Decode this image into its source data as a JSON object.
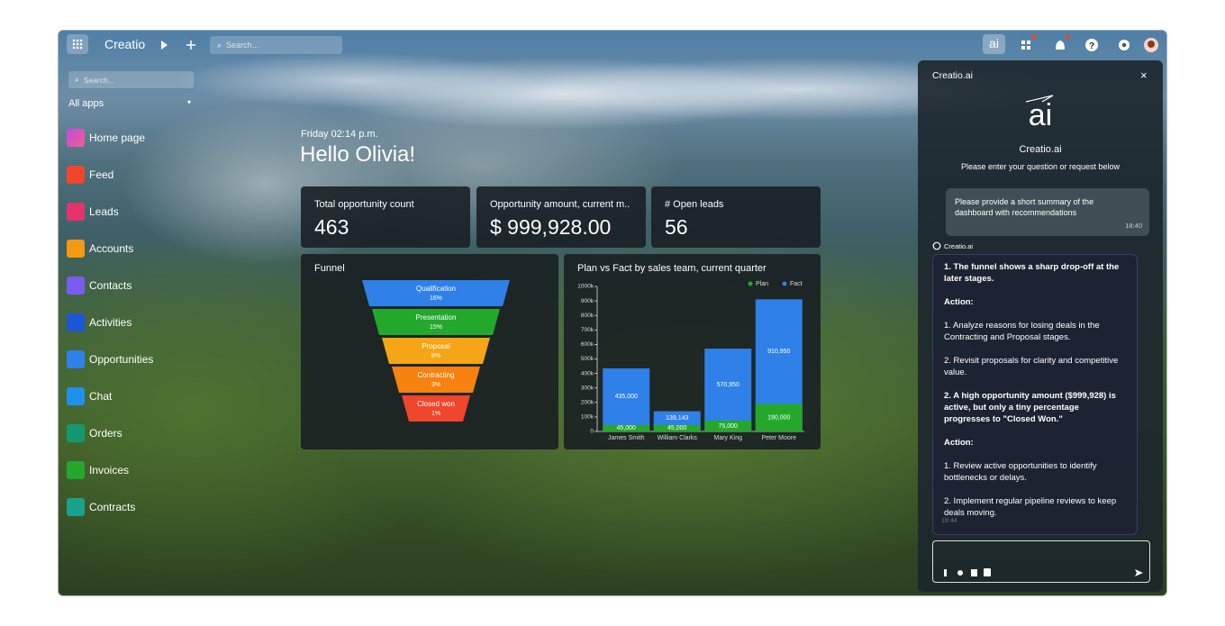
{
  "topbar": {
    "brand": "Creatio",
    "search_placeholder": "Search..."
  },
  "sidebar": {
    "search_placeholder": "Search...",
    "all_apps": "All apps",
    "items": [
      "Home page",
      "Feed",
      "Leads",
      "Accounts",
      "Contacts",
      "Activities",
      "Opportunities",
      "Chat",
      "Orders",
      "Invoices",
      "Contracts"
    ]
  },
  "dashboard": {
    "datetime": "Friday 02:14 p.m.",
    "greeting": "Hello Olivia!",
    "kpis": [
      {
        "label": "Total opportunity count",
        "value": 463
      },
      {
        "label": "Opportunity amount, current m..",
        "value": "$ 999,928.00"
      },
      {
        "label": "# Open leads",
        "value": 56
      }
    ]
  },
  "chart_data": [
    {
      "type": "funnel",
      "title": "Funnel",
      "categories": [
        "Qualification",
        "Presentation",
        "Proposal",
        "Contracting",
        "Closed won"
      ],
      "values": [
        16,
        15,
        8,
        3,
        1
      ],
      "value_labels": [
        "16%",
        "15%",
        "8%",
        "3%",
        "1%"
      ],
      "colors": [
        "#2f80e8",
        "#23a82c",
        "#f5a516",
        "#f7820f",
        "#f0462c"
      ]
    },
    {
      "type": "bar",
      "title": "Plan vs Fact by sales team, current quarter",
      "categories": [
        "James Smith",
        "William Clarks",
        "Mary King",
        "Peter Moore"
      ],
      "series": [
        {
          "name": "Plan",
          "color": "#23a82c",
          "values": [
            45000,
            45000,
            75000,
            190000
          ],
          "value_labels": [
            "45,000",
            "45,000",
            "75,000",
            "190,000"
          ]
        },
        {
          "name": "Fact",
          "color": "#2f80e8",
          "values": [
            435000,
            139143,
            570950,
            910950
          ],
          "value_labels": [
            "435,000",
            "139,143",
            "570,950",
            "910,950"
          ]
        }
      ],
      "ylim": [
        0,
        1000000
      ],
      "yticks": [
        0,
        {
          "value": 100000,
          "label": "100k"
        },
        {
          "value": 200000,
          "label": "200k"
        },
        {
          "value": 300000,
          "label": "300k"
        },
        {
          "value": 400000,
          "label": "400k"
        },
        {
          "value": 500000,
          "label": "500k"
        },
        {
          "value": 600000,
          "label": "600k"
        },
        {
          "value": 700000,
          "label": "700k"
        },
        {
          "value": 800000,
          "label": "800k"
        },
        {
          "value": 900000,
          "label": "900k"
        },
        {
          "value": 1000000,
          "label": "1000k"
        }
      ],
      "legend": "top-right"
    }
  ],
  "ai_panel": {
    "header": "Creatio.ai",
    "logo": "ai",
    "name": "Creatio.ai",
    "subtitle": "Please enter your question or request below",
    "user_message": "Please provide a short summary of the dashboard with recommendations",
    "user_time": "18:40",
    "bot_label": "Creatio.ai",
    "response": [
      {
        "text": "1. The funnel shows a sharp drop-off at the later stages.",
        "bold": true
      },
      {
        "text": "Action:",
        "bold": true
      },
      {
        "text": "1. Analyze reasons for losing deals in the Contracting and Proposal stages.",
        "bold": false
      },
      {
        "text": "2. Revisit proposals for clarity and competitive value.",
        "bold": false
      },
      {
        "text": "2.  A high opportunity amount ($999,928) is active, but only a tiny percentage progresses to \"Closed Won.\"",
        "bold": true
      },
      {
        "text": "Action:",
        "bold": true
      },
      {
        "text": "1. Review active opportunities to identify bottlenecks or delays.",
        "bold": false
      },
      {
        "text": "2. Implement regular pipeline reviews to keep deals moving.",
        "bold": false
      }
    ],
    "response_time": "18:44"
  }
}
